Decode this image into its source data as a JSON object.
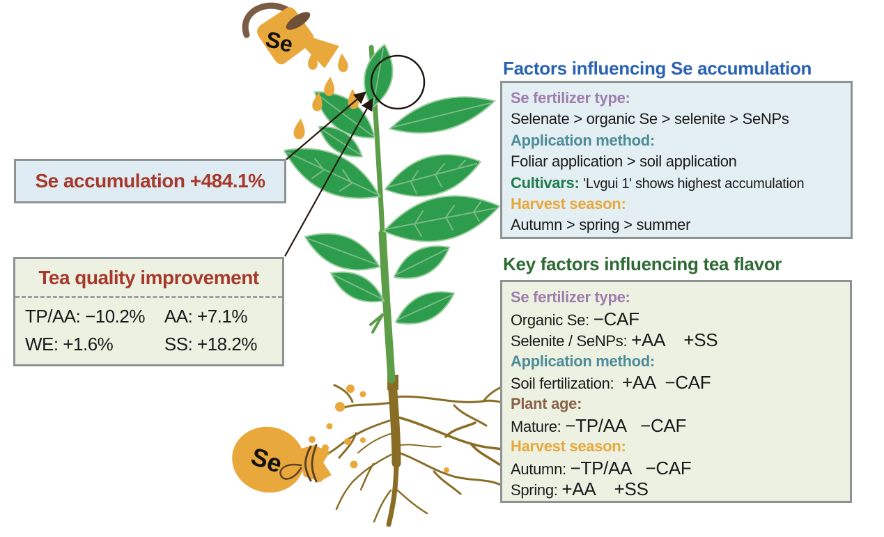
{
  "colors": {
    "title-blue": "#2a62b2",
    "title-green": "#2e6b34",
    "accent-red": "#a6392b",
    "heading-purple": "#9e7eac",
    "heading-teal": "#4e8c99",
    "heading-green": "#1f7d4d",
    "heading-orange": "#e7a83c",
    "heading-brown": "#8a6348",
    "panel-blue-bg": "#e4eff3",
    "panel-green-bg": "#edf1e2",
    "gold": "#e8a83b",
    "leaf-green": "#2d9c4c",
    "stem-green": "#5c9d48",
    "root-brown": "#8a6d25"
  },
  "callouts": {
    "accumulation": {
      "text": "Se accumulation +484.1%"
    },
    "quality": {
      "title": "Tea quality improvement",
      "stats": [
        {
          "label": "TP/AA:",
          "value": "−10.2%"
        },
        {
          "label": "AA:",
          "value": "+7.1%"
        },
        {
          "label": "WE:",
          "value": "+1.6%"
        },
        {
          "label": "SS:",
          "value": "+18.2%"
        }
      ]
    }
  },
  "panels": {
    "accumulation": {
      "title": "Factors influencing Se accumulation",
      "lines": [
        [
          {
            "t": "Se fertilizer type:",
            "c": "hp"
          }
        ],
        [
          {
            "t": "Selenate > organic Se > selenite > SeNPs",
            "c": "p"
          }
        ],
        [
          {
            "t": "Application method:",
            "c": "ht"
          }
        ],
        [
          {
            "t": "Foliar application > soil application",
            "c": "p"
          }
        ],
        [
          {
            "t": "Cultivars:",
            "c": "hg"
          },
          {
            "t": " ",
            "c": "p"
          },
          {
            "t": "'Lvgui 1' shows highest accumulation",
            "c": "sm"
          }
        ],
        [
          {
            "t": "Harvest season:",
            "c": "ho"
          }
        ],
        [
          {
            "t": "Autumn > spring > summer",
            "c": "p"
          }
        ]
      ]
    },
    "flavor": {
      "title": "Key factors influencing tea flavor",
      "lines": [
        [
          {
            "t": "Se fertilizer type:",
            "c": "hp"
          }
        ],
        [
          {
            "t": "Organic Se: ",
            "c": "p"
          },
          {
            "t": "−CAF",
            "c": "bg"
          }
        ],
        [
          {
            "t": "Selenite / SeNPs: ",
            "c": "p"
          },
          {
            "t": "+AA    +SS",
            "c": "bg"
          }
        ],
        [
          {
            "t": "Application method:",
            "c": "ht"
          }
        ],
        [
          {
            "t": "Soil fertilization:  ",
            "c": "p"
          },
          {
            "t": "+AA  −CAF",
            "c": "bg"
          }
        ],
        [
          {
            "t": "Plant age:",
            "c": "hb"
          }
        ],
        [
          {
            "t": "Mature: ",
            "c": "p"
          },
          {
            "t": "−TP/AA   −CAF",
            "c": "bg"
          }
        ],
        [
          {
            "t": "Harvest season:",
            "c": "ho"
          }
        ],
        [
          {
            "t": "Autumn: ",
            "c": "p"
          },
          {
            "t": "−TP/AA   −CAF",
            "c": "bg"
          }
        ],
        [
          {
            "t": "Spring: ",
            "c": "p"
          },
          {
            "t": "+AA    +SS",
            "c": "bg"
          }
        ]
      ]
    }
  },
  "illustration": {
    "watering_can_label": "Se",
    "bag_label": "Se"
  }
}
